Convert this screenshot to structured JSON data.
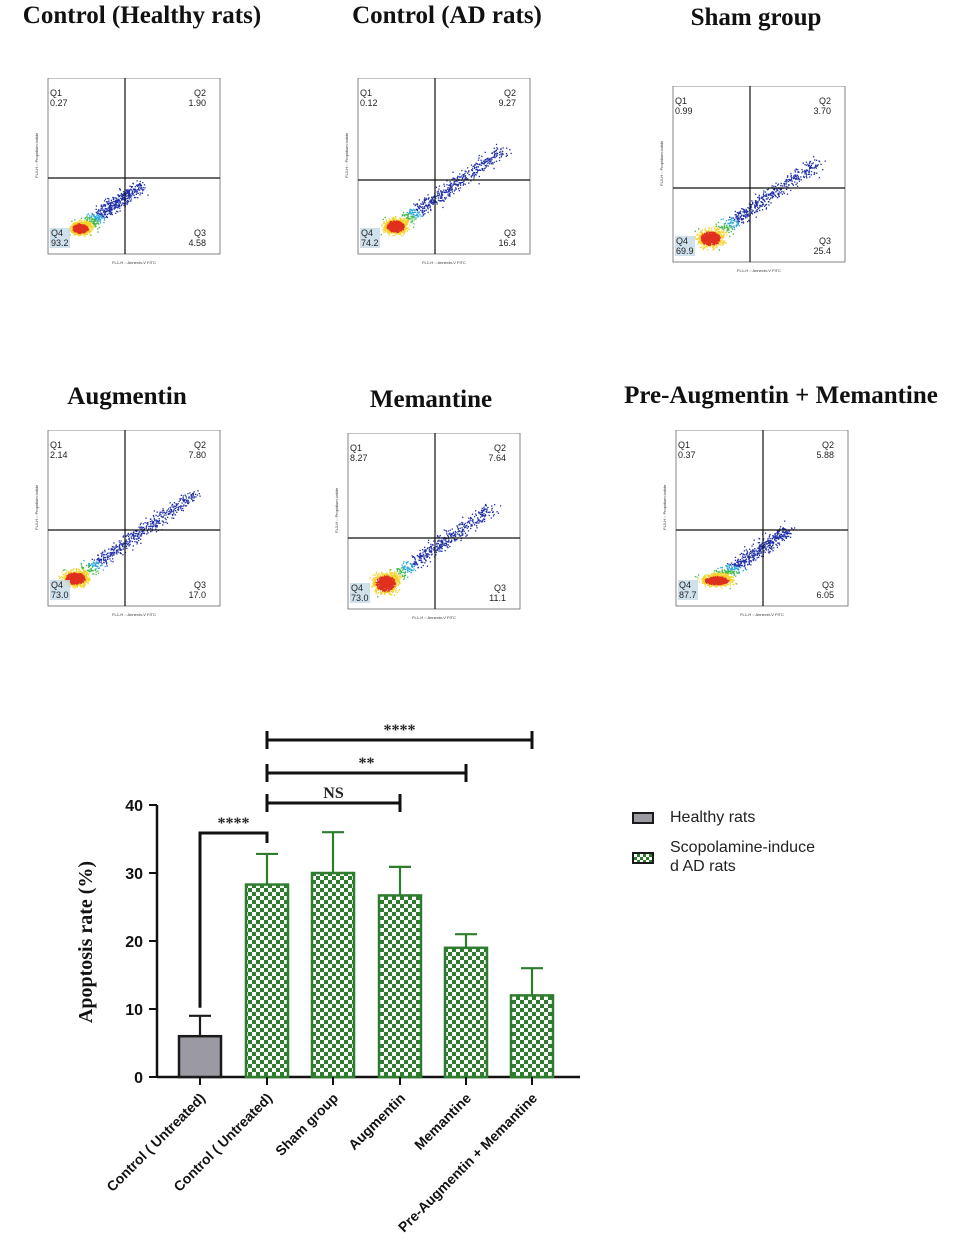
{
  "panels": [
    {
      "title": "Control (Healthy rats)",
      "q1": "0.27",
      "q2": "1.90",
      "q3": "4.58",
      "q4": "93.2",
      "axis_x": "FL1-H :: Annexin-V FITC",
      "axis_y": "FL3-H :: Propidium iodide"
    },
    {
      "title": "Control (AD rats)",
      "q1": "0.12",
      "q2": "9.27",
      "q3": "16.4",
      "q4": "74.2",
      "axis_x": "FL1-H :: Annexin-V FITC",
      "axis_y": "FL3-H :: Propidium iodide"
    },
    {
      "title": "Sham group",
      "q1": "0.99",
      "q2": "3.70",
      "q3": "25.4",
      "q4": "69.9",
      "axis_x": "FL1-H :: Annexin-V FITC",
      "axis_y": "FL3-H :: Propidium iodide"
    },
    {
      "title": "Augmentin",
      "q1": "2.14",
      "q2": "7.80",
      "q3": "17.0",
      "q4": "73.0",
      "axis_x": "FL1-H :: Annexin-V FITC",
      "axis_y": "FL3-H :: Propidium iodide"
    },
    {
      "title": "Memantine",
      "q1": "8.27",
      "q2": "7.64",
      "q3": "11.1",
      "q4": "73.0",
      "axis_x": "FL1-H :: Annexin-V FITC",
      "axis_y": "FL3-H :: Propidium iodide"
    },
    {
      "title": "Pre-Augmentin + Memantine",
      "q1": "0.37",
      "q2": "5.88",
      "q3": "6.05",
      "q4": "87.7",
      "axis_x": "FL1-H :: Annexin-V FITC",
      "axis_y": "FL3-H :: Propidium iodide"
    }
  ],
  "quadrant_names": {
    "q1": "Q1",
    "q2": "Q2",
    "q3": "Q3",
    "q4": "Q4"
  },
  "chart_data": {
    "type": "bar",
    "title": "",
    "xlabel": "",
    "ylabel": "Apoptosis rate (%)",
    "ylim": [
      0,
      40
    ],
    "yticks": [
      0,
      10,
      20,
      30,
      40
    ],
    "categories": [
      "Control ( Untreated)",
      "Control ( Untreated)",
      "Sham group",
      "Augmentin",
      "Memantine",
      "Pre-Augmentin + Memantine"
    ],
    "values": [
      6,
      28.3,
      30,
      26.7,
      19,
      12
    ],
    "errors": [
      3,
      4.5,
      6,
      4.2,
      2,
      4
    ],
    "series_of_bar": [
      "Healthy rats",
      "Scopolamine-induced AD rats",
      "Scopolamine-induced AD rats",
      "Scopolamine-induced AD rats",
      "Scopolamine-induced AD rats",
      "Scopolamine-induced AD rats"
    ],
    "legend": [
      {
        "name": "Healthy rats",
        "color": "#9b9aa2"
      },
      {
        "name": "Scopolamine-induce\nd AD rats",
        "color": "#2e7d2e"
      }
    ],
    "significance": [
      {
        "from": 0,
        "to": 1,
        "label": "****"
      },
      {
        "from": 1,
        "to": 3,
        "label": "NS"
      },
      {
        "from": 1,
        "to": 4,
        "label": "**"
      },
      {
        "from": 1,
        "to": 5,
        "label": "****"
      }
    ]
  }
}
